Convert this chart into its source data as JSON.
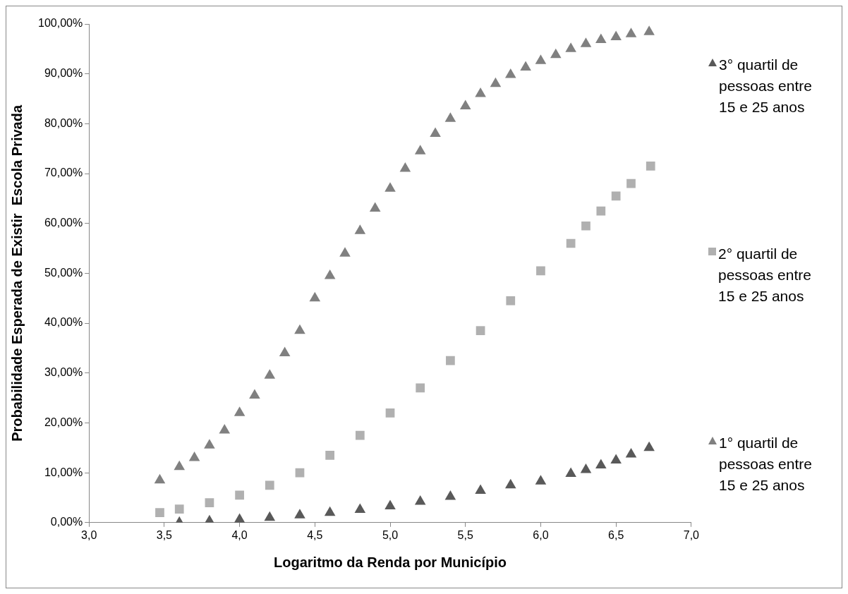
{
  "chart_data": {
    "type": "scatter",
    "xlabel": "Logaritmo da Renda por Município",
    "ylabel": "Probabilidade Esperada de Existir  Escola Privada",
    "legend": "right",
    "xlim": [
      3,
      7
    ],
    "xticks": [
      {
        "value": 3,
        "label": "3,0"
      },
      {
        "value": 3.5,
        "label": "3,5"
      },
      {
        "value": 4,
        "label": "4,0"
      },
      {
        "value": 4.5,
        "label": "4,5"
      },
      {
        "value": 5,
        "label": "5,0"
      },
      {
        "value": 5.5,
        "label": "5,5"
      },
      {
        "value": 6,
        "label": "6,0"
      },
      {
        "value": 6.5,
        "label": "6,5"
      },
      {
        "value": 7,
        "label": "7,0"
      }
    ],
    "ylim": [
      0,
      100
    ],
    "yticks": [
      {
        "value": 0,
        "label": "0,00%"
      },
      {
        "value": 10,
        "label": "10,00%"
      },
      {
        "value": 20,
        "label": "20,00%"
      },
      {
        "value": 30,
        "label": "30,00%"
      },
      {
        "value": 40,
        "label": "40,00%"
      },
      {
        "value": 50,
        "label": "50,00%"
      },
      {
        "value": 60,
        "label": "60,00%"
      },
      {
        "value": 70,
        "label": "70,00%"
      },
      {
        "value": 80,
        "label": "80,00%"
      },
      {
        "value": 90,
        "label": "90,00%"
      },
      {
        "value": 100,
        "label": "100,00%"
      }
    ],
    "series": [
      {
        "name": "3° quartil de pessoas entre 15 e 25 anos",
        "color": "#595959",
        "marker": "triangle",
        "x": [
          3.6,
          3.8,
          4.0,
          4.2,
          4.4,
          4.6,
          4.8,
          5.0,
          5.2,
          5.4,
          5.6,
          5.8,
          6.0,
          6.2,
          6.3,
          6.4,
          6.5,
          6.6,
          6.72
        ],
        "values": [
          0,
          0.3,
          0.6,
          1,
          1.5,
          2,
          2.6,
          3.3,
          4.2,
          5.2,
          6.4,
          7.5,
          8.3,
          9.8,
          10.6,
          11.5,
          12.5,
          13.7,
          15
        ]
      },
      {
        "name": "2° quartil de pessoas entre 15 e 25 anos",
        "color": "#b0b0b0",
        "marker": "square",
        "x": [
          3.47,
          3.6,
          3.8,
          4.0,
          4.2,
          4.4,
          4.6,
          4.8,
          5.0,
          5.2,
          5.4,
          5.6,
          5.8,
          6.0,
          6.2,
          6.3,
          6.4,
          6.5,
          6.6,
          6.73
        ],
        "values": [
          2,
          2.7,
          4,
          5.5,
          7.5,
          10,
          13.5,
          17.5,
          22,
          27,
          32.5,
          38.5,
          44.5,
          50.5,
          56,
          59.5,
          62.5,
          65.5,
          68,
          71.5
        ]
      },
      {
        "name": "1° quartil de pessoas entre 15 e 25 anos",
        "color": "#808080",
        "marker": "triangle",
        "x": [
          3.47,
          3.6,
          3.7,
          3.8,
          3.9,
          4.0,
          4.1,
          4.2,
          4.3,
          4.4,
          4.5,
          4.6,
          4.7,
          4.8,
          4.9,
          5.0,
          5.1,
          5.2,
          5.3,
          5.4,
          5.5,
          5.6,
          5.7,
          5.8,
          5.9,
          6.0,
          6.1,
          6.2,
          6.3,
          6.4,
          6.5,
          6.6,
          6.72
        ],
        "values": [
          8.5,
          11.2,
          13,
          15.5,
          18.5,
          22,
          25.5,
          29.5,
          34,
          38.5,
          45,
          49.5,
          54,
          58.5,
          63,
          67,
          71,
          74.5,
          78,
          81,
          83.5,
          86,
          88,
          89.8,
          91.3,
          92.6,
          93.8,
          95,
          96,
          96.8,
          97.4,
          98,
          98.4
        ]
      }
    ]
  }
}
